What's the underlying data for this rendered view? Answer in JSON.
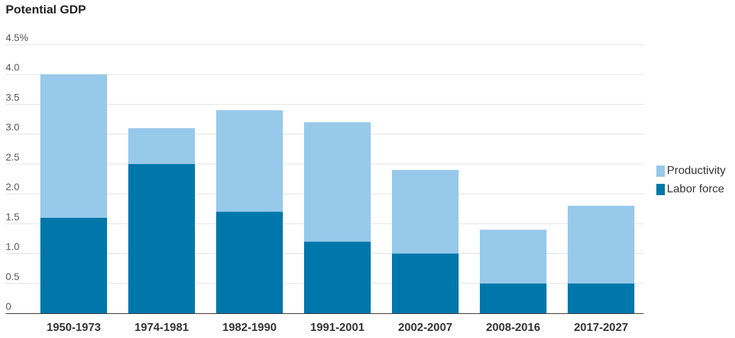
{
  "chart_data": {
    "type": "bar",
    "stacked": true,
    "title": "Potential GDP",
    "categories": [
      "1950-1973",
      "1974-1981",
      "1982-1990",
      "1991-2001",
      "2002-2007",
      "2008-2016",
      "2017-2027"
    ],
    "series": [
      {
        "name": "Labor force",
        "color": "#0077aa",
        "values": [
          1.6,
          2.5,
          1.7,
          1.2,
          1.0,
          0.5,
          0.5
        ]
      },
      {
        "name": "Productivity",
        "color": "#97c9eb",
        "values": [
          2.4,
          0.6,
          1.7,
          2.0,
          1.4,
          0.9,
          1.3
        ]
      }
    ],
    "y_ticks": [
      "0",
      "0.5",
      "1.0",
      "1.5",
      "2.0",
      "2.5",
      "3.0",
      "3.5",
      "4.0",
      "4.5%"
    ],
    "ylim": [
      0,
      4.5
    ],
    "grid": true,
    "legend": {
      "placement": "right",
      "items": [
        {
          "label": "Productivity",
          "color": "#97c9eb"
        },
        {
          "label": "Labor force",
          "color": "#0077aa"
        }
      ]
    }
  }
}
